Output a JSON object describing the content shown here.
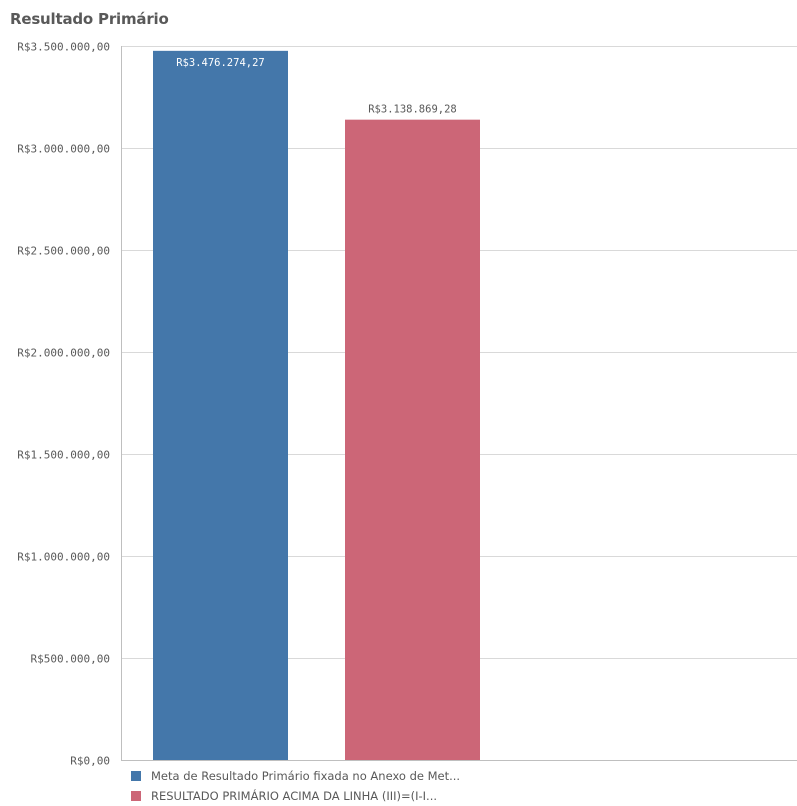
{
  "chart_data": {
    "type": "bar",
    "title": "Resultado Primário",
    "categories": [
      "Meta de Resultado Primário fixada no Anexo de Met...",
      "RESULTADO PRIMÁRIO ACIMA DA LINHA (III)=(I-I..."
    ],
    "values": [
      3476274.27,
      3138869.28
    ],
    "value_labels": [
      "R$3.476.274,27",
      "R$3.138.869,28"
    ],
    "colors": [
      "#4477aa",
      "#cc6677"
    ],
    "ylim": [
      0,
      3500000
    ],
    "y_ticks": [
      0,
      500000,
      1000000,
      1500000,
      2000000,
      2500000,
      3000000,
      3500000
    ],
    "y_tick_labels": [
      "R$0,00",
      "R$500.000,00",
      "R$1.000.000,00",
      "R$1.500.000,00",
      "R$2.000.000,00",
      "R$2.500.000,00",
      "R$3.000.000,00",
      "R$3.500.000,00"
    ],
    "grid": true,
    "legend_position": "bottom-left"
  },
  "legend": {
    "items": [
      {
        "label": "Meta de Resultado Primário fixada no Anexo de Met...",
        "color": "#4477aa"
      },
      {
        "label": "RESULTADO PRIMÁRIO ACIMA DA LINHA (III)=(I-I...",
        "color": "#cc6677"
      }
    ]
  }
}
